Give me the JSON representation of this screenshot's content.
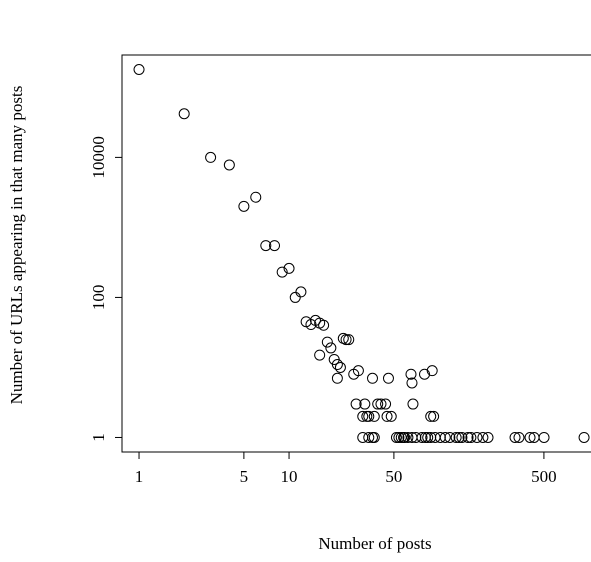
{
  "chart_data": {
    "type": "scatter",
    "log_x": true,
    "log_y": true,
    "x_label": "Number of posts",
    "y_label": "Number of URLs appearing in that many posts",
    "xlim": [
      0.77,
      1030
    ],
    "ylim": [
      0.62,
      290000
    ],
    "xticks": [
      1,
      5,
      10,
      50,
      500
    ],
    "yticks": [
      1,
      100,
      10000
    ],
    "color": "#000000",
    "x": [
      1,
      2,
      3,
      4,
      5,
      6,
      7,
      8,
      9,
      10,
      11,
      12,
      13,
      14,
      15,
      16,
      17,
      16,
      18,
      19,
      20,
      21,
      21,
      22,
      23,
      24,
      25,
      27,
      29,
      28,
      33,
      36,
      46,
      39,
      41,
      44,
      66,
      65,
      67,
      80,
      90,
      32,
      48,
      31,
      34,
      37,
      45,
      88,
      92,
      31,
      34,
      36,
      37,
      52,
      54,
      56,
      58,
      59,
      62,
      66,
      70,
      77,
      81,
      84,
      88,
      94,
      102,
      110,
      118,
      130,
      136,
      142,
      156,
      163,
      179,
      196,
      212,
      321,
      341,
      404,
      430,
      501,
      926
    ],
    "y": [
      180000,
      42000,
      10000,
      7800,
      2000,
      2700,
      550,
      550,
      230,
      260,
      100,
      120,
      45,
      41,
      47,
      43,
      40,
      15,
      23,
      19,
      13,
      11,
      7,
      10,
      26,
      25,
      25,
      8,
      9,
      3,
      2,
      7,
      7,
      3,
      3,
      3,
      6,
      8,
      3,
      8,
      9,
      3,
      2,
      2,
      2,
      2,
      2,
      2,
      2,
      1,
      1,
      1,
      1,
      1,
      1,
      1,
      1,
      1,
      1,
      1,
      1,
      1,
      1,
      1,
      1,
      1,
      1,
      1,
      1,
      1,
      1,
      1,
      1,
      1,
      1,
      1,
      1,
      1,
      1,
      1,
      1,
      1,
      1
    ]
  }
}
